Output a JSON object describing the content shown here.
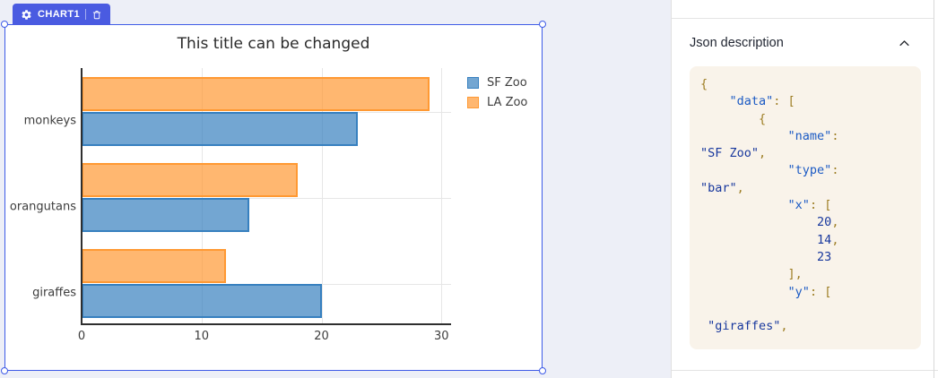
{
  "widget": {
    "badge": {
      "label": "CHART1",
      "gear_icon": "settings-gear",
      "trash_icon": "trash-can"
    },
    "selection_color": "#3e5be7"
  },
  "chart_data": {
    "type": "bar",
    "orientation": "horizontal",
    "title": "This title can be changed",
    "categories": [
      "monkeys",
      "orangutans",
      "giraffes"
    ],
    "series": [
      {
        "name": "SF Zoo",
        "values": [
          23,
          14,
          20
        ],
        "fill": "rgba(55,128,191,0.7)",
        "line": "#3780bf"
      },
      {
        "name": "LA Zoo",
        "values": [
          29,
          18,
          12
        ],
        "fill": "rgba(255,153,51,0.7)",
        "line": "#ff9933"
      }
    ],
    "x_ticks": [
      0,
      10,
      20,
      30
    ],
    "xlim": [
      0,
      30.8
    ],
    "grid": true,
    "legend_position": "top-right"
  },
  "json_panel": {
    "title": "Json description",
    "collapse_icon": "chevron-up",
    "code_lines": [
      [
        [
          "p",
          "{"
        ]
      ],
      [
        [
          "p",
          "    "
        ],
        [
          "k",
          "\"data\""
        ],
        [
          "p",
          ": ["
        ]
      ],
      [
        [
          "p",
          "        {"
        ]
      ],
      [
        [
          "p",
          "            "
        ],
        [
          "k",
          "\"name\""
        ],
        [
          "p",
          ":"
        ]
      ],
      [
        [
          "s",
          "\"SF Zoo\""
        ],
        [
          "p",
          ","
        ]
      ],
      [
        [
          "p",
          "            "
        ],
        [
          "k",
          "\"type\""
        ],
        [
          "p",
          ":"
        ]
      ],
      [
        [
          "s",
          "\"bar\""
        ],
        [
          "p",
          ","
        ]
      ],
      [
        [
          "p",
          "            "
        ],
        [
          "k",
          "\"x\""
        ],
        [
          "p",
          ": ["
        ]
      ],
      [
        [
          "p",
          "                "
        ],
        [
          "n",
          "20"
        ],
        [
          "p",
          ","
        ]
      ],
      [
        [
          "p",
          "                "
        ],
        [
          "n",
          "14"
        ],
        [
          "p",
          ","
        ]
      ],
      [
        [
          "p",
          "                "
        ],
        [
          "n",
          "23"
        ]
      ],
      [
        [
          "p",
          "            ],"
        ]
      ],
      [
        [
          "p",
          "            "
        ],
        [
          "k",
          "\"y\""
        ],
        [
          "p",
          ": ["
        ]
      ],
      [],
      [
        [
          "p",
          " "
        ],
        [
          "s",
          "\"giraffes\""
        ],
        [
          "p",
          ","
        ]
      ]
    ]
  }
}
